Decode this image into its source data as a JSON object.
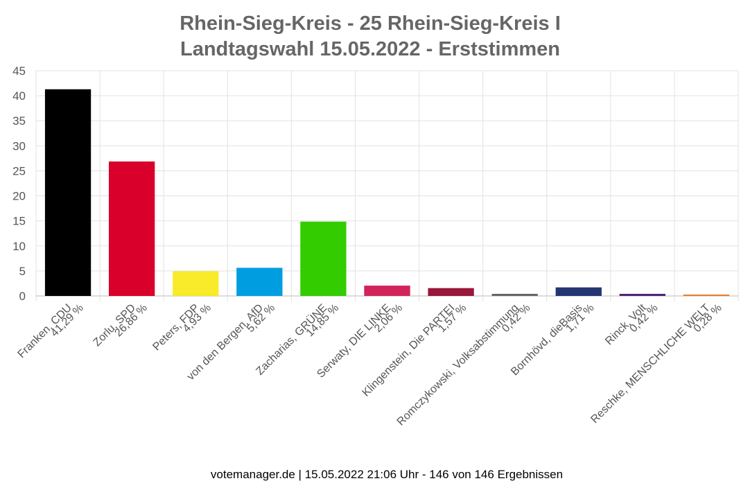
{
  "chart_data": {
    "type": "bar",
    "title": "Rhein-Sieg-Kreis - 25 Rhein-Sieg-Kreis I",
    "subtitle": "Landtagswahl 15.05.2022  - Erststimmen",
    "xlabel": "",
    "ylabel": "",
    "ylim": [
      0,
      45
    ],
    "yticks": [
      0,
      5,
      10,
      15,
      20,
      25,
      30,
      35,
      40,
      45
    ],
    "grid": true,
    "categories": [
      {
        "name": "Franken, CDU",
        "value_label": "41,29 %"
      },
      {
        "name": "Zorlu, SPD",
        "value_label": "26,86 %"
      },
      {
        "name": "Peters, FDP",
        "value_label": "4,93 %"
      },
      {
        "name": "von den Bergen, AfD",
        "value_label": "5,62 %"
      },
      {
        "name": "Zacharias, GRÜNE",
        "value_label": "14,85 %"
      },
      {
        "name": "Serwaty, DIE LINKE",
        "value_label": "2,06 %"
      },
      {
        "name": "Klingenstein, Die PARTEI",
        "value_label": "1,57 %"
      },
      {
        "name": "Romczykowski, Volksabstimmung",
        "value_label": "0,42 %"
      },
      {
        "name": "Bornhövd, dieBasis",
        "value_label": "1,71 %"
      },
      {
        "name": "Rinck, Volt",
        "value_label": "0,42 %"
      },
      {
        "name": "Reschke, MENSCHLICHE WELT",
        "value_label": "0,28 %"
      }
    ],
    "values": [
      41.29,
      26.86,
      4.93,
      5.62,
      14.85,
      2.06,
      1.57,
      0.42,
      1.71,
      0.42,
      0.28
    ],
    "colors": [
      "#000000",
      "#d9002b",
      "#f9ea2a",
      "#009ee0",
      "#33cc00",
      "#d2235a",
      "#99173a",
      "#666666",
      "#243572",
      "#502379",
      "#e87f2b"
    ]
  },
  "footer": "votemanager.de | 15.05.2022 21:06 Uhr - 146 von 146 Ergebnissen"
}
